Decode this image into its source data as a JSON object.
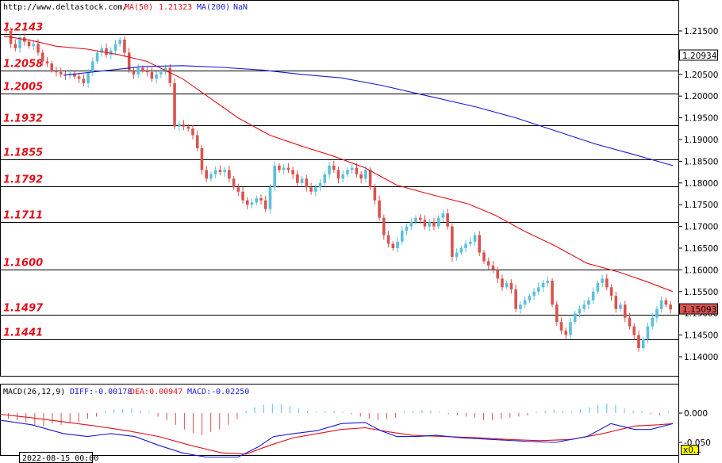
{
  "header": {
    "site": "http://www.deltastock.com/",
    "ma50_label": "MA(50)",
    "ma50_value": "1.21323",
    "ma200_label": "MA(200)",
    "ma200_value": "NaN"
  },
  "chart_data": {
    "type": "candlestick",
    "y_axis": {
      "ticks": [
        "1.21500",
        "1.21000",
        "1.20500",
        "1.20000",
        "1.19500",
        "1.19000",
        "1.18500",
        "1.18000",
        "1.17500",
        "1.17000",
        "1.16500",
        "1.16000",
        "1.15500",
        "1.15000",
        "1.14500",
        "1.14000"
      ],
      "min": 1.1355,
      "max": 1.219
    },
    "levels": [
      "1.2143",
      "1.2058",
      "1.2005",
      "1.1932",
      "1.1855",
      "1.1792",
      "1.1711",
      "1.1600",
      "1.1497",
      "1.1441"
    ],
    "badges": [
      {
        "value": "1.20934",
        "color": "#ffffff"
      },
      {
        "value": "1.15093",
        "color": "#d9534f"
      }
    ],
    "closes": [
      1.215,
      1.212,
      1.211,
      1.2135,
      1.2125,
      1.2115,
      1.212,
      1.21,
      1.208,
      1.2075,
      1.206,
      1.2055,
      1.205,
      1.2048,
      1.2052,
      1.2045,
      1.204,
      1.203,
      1.2055,
      1.208,
      1.21,
      1.211,
      1.2095,
      1.2105,
      1.212,
      1.213,
      1.21,
      1.206,
      1.205,
      1.2065,
      1.206,
      1.2055,
      1.204,
      1.205,
      1.2055,
      1.2065,
      1.203,
      1.193,
      1.1935,
      1.193,
      1.1925,
      1.191,
      1.188,
      1.183,
      1.181,
      1.182,
      1.183,
      1.1825,
      1.183,
      1.181,
      1.179,
      1.178,
      1.176,
      1.175,
      1.1755,
      1.1765,
      1.176,
      1.174,
      1.179,
      1.184,
      1.183,
      1.1835,
      1.183,
      1.182,
      1.18,
      1.181,
      1.179,
      1.178,
      1.179,
      1.18,
      1.182,
      1.184,
      1.183,
      1.181,
      1.182,
      1.183,
      1.1835,
      1.182,
      1.181,
      1.183,
      1.179,
      1.176,
      1.172,
      1.168,
      1.166,
      1.165,
      1.1665,
      1.169,
      1.17,
      1.171,
      1.172,
      1.1715,
      1.17,
      1.171,
      1.17,
      1.172,
      1.173,
      1.17,
      1.163,
      1.164,
      1.165,
      1.166,
      1.1665,
      1.168,
      1.164,
      1.162,
      1.161,
      1.16,
      1.158,
      1.156,
      1.157,
      1.1555,
      1.151,
      1.152,
      1.153,
      1.154,
      1.155,
      1.156,
      1.157,
      1.1575,
      1.152,
      1.148,
      1.146,
      1.145,
      1.148,
      1.15,
      1.151,
      1.152,
      1.153,
      1.155,
      1.157,
      1.158,
      1.156,
      1.154,
      1.151,
      1.152,
      1.149,
      1.147,
      1.145,
      1.142,
      1.144,
      1.147,
      1.149,
      1.151,
      1.153,
      1.152,
      1.1509
    ],
    "ma50": [
      [
        5,
        1.2138
      ],
      [
        40,
        1.2128
      ],
      [
        70,
        1.2115
      ],
      [
        110,
        1.2108
      ],
      [
        150,
        1.2095
      ],
      [
        185,
        1.208
      ],
      [
        230,
        1.204
      ],
      [
        265,
        1.1995
      ],
      [
        300,
        1.195
      ],
      [
        340,
        1.191
      ],
      [
        380,
        1.1885
      ],
      [
        420,
        1.1862
      ],
      [
        460,
        1.1835
      ],
      [
        500,
        1.1795
      ],
      [
        540,
        1.1775
      ],
      [
        590,
        1.1752
      ],
      [
        625,
        1.1725
      ],
      [
        660,
        1.169
      ],
      [
        700,
        1.1655
      ],
      [
        740,
        1.1615
      ],
      [
        780,
        1.1595
      ],
      [
        815,
        1.1573
      ],
      [
        848,
        1.155
      ]
    ],
    "ma200": [
      [
        80,
        1.2048
      ],
      [
        130,
        1.2058
      ],
      [
        180,
        1.2068
      ],
      [
        230,
        1.207
      ],
      [
        280,
        1.2066
      ],
      [
        330,
        1.206
      ],
      [
        380,
        1.205
      ],
      [
        430,
        1.2042
      ],
      [
        480,
        1.2025
      ],
      [
        540,
        1.2
      ],
      [
        600,
        1.1975
      ],
      [
        650,
        1.195
      ],
      [
        700,
        1.192
      ],
      [
        750,
        1.189
      ],
      [
        800,
        1.1865
      ],
      [
        848,
        1.184
      ]
    ],
    "macd": {
      "label": "MACD(26,12,9)",
      "diff_label": "DIFF:-0.00178",
      "dea_label": "DEA:0.00947",
      "macd_label": "MACD:-0.02250",
      "ticks": [
        "0.000",
        "-0.050"
      ],
      "min": -0.078,
      "max": 0.022,
      "hist": [
        -0.01,
        -0.012,
        -0.015,
        -0.02,
        -0.022,
        -0.018,
        -0.02,
        -0.018,
        -0.015,
        -0.01,
        -0.006,
        0.003,
        0.006,
        0.007,
        0.008,
        0.004,
        0.002,
        -0.006,
        -0.012,
        -0.02,
        -0.028,
        -0.034,
        -0.038,
        -0.032,
        -0.028,
        -0.02,
        -0.01,
        0.004,
        0.01,
        0.014,
        0.016,
        0.015,
        0.012,
        0.008,
        0.004,
        0.002,
        0.003,
        0.004,
        0.002,
        -0.002,
        -0.006,
        -0.01,
        -0.012,
        -0.01,
        -0.008,
        0.002,
        0.004,
        0.005,
        0.004,
        0.002,
        -0.002,
        -0.004,
        -0.006,
        -0.008,
        -0.012,
        -0.012,
        -0.01,
        -0.008,
        -0.006,
        -0.004,
        0.002,
        0.004,
        0.006,
        0.004,
        0.002,
        0.006,
        0.01,
        0.014,
        0.016,
        0.014,
        0.008,
        0.004,
        0.004,
        -0.002,
        -0.004,
        0.002
      ],
      "diff": [
        [
          0,
          -0.012
        ],
        [
          40,
          -0.02
        ],
        [
          80,
          -0.035
        ],
        [
          110,
          -0.04
        ],
        [
          140,
          -0.035
        ],
        [
          170,
          -0.04
        ],
        [
          200,
          -0.055
        ],
        [
          230,
          -0.068
        ],
        [
          260,
          -0.075
        ],
        [
          300,
          -0.075
        ],
        [
          325,
          -0.058
        ],
        [
          345,
          -0.04
        ],
        [
          370,
          -0.035
        ],
        [
          400,
          -0.03
        ],
        [
          430,
          -0.018
        ],
        [
          460,
          -0.016
        ],
        [
          480,
          -0.03
        ],
        [
          500,
          -0.04
        ],
        [
          525,
          -0.04
        ],
        [
          550,
          -0.038
        ],
        [
          580,
          -0.042
        ],
        [
          620,
          -0.045
        ],
        [
          660,
          -0.048
        ],
        [
          700,
          -0.05
        ],
        [
          740,
          -0.04
        ],
        [
          770,
          -0.018
        ],
        [
          800,
          -0.028
        ],
        [
          820,
          -0.028
        ],
        [
          848,
          -0.018
        ]
      ],
      "dea": [
        [
          0,
          -0.002
        ],
        [
          40,
          -0.008
        ],
        [
          80,
          -0.015
        ],
        [
          120,
          -0.022
        ],
        [
          160,
          -0.03
        ],
        [
          200,
          -0.04
        ],
        [
          240,
          -0.055
        ],
        [
          280,
          -0.068
        ],
        [
          310,
          -0.07
        ],
        [
          340,
          -0.055
        ],
        [
          370,
          -0.042
        ],
        [
          400,
          -0.035
        ],
        [
          430,
          -0.028
        ],
        [
          460,
          -0.025
        ],
        [
          490,
          -0.032
        ],
        [
          520,
          -0.038
        ],
        [
          560,
          -0.04
        ],
        [
          600,
          -0.042
        ],
        [
          640,
          -0.045
        ],
        [
          680,
          -0.047
        ],
        [
          720,
          -0.045
        ],
        [
          760,
          -0.035
        ],
        [
          800,
          -0.022
        ],
        [
          830,
          -0.02
        ],
        [
          848,
          -0.018
        ]
      ]
    },
    "footer_date": "2022-08-15 00:00",
    "zoom_label": "x0.1"
  }
}
